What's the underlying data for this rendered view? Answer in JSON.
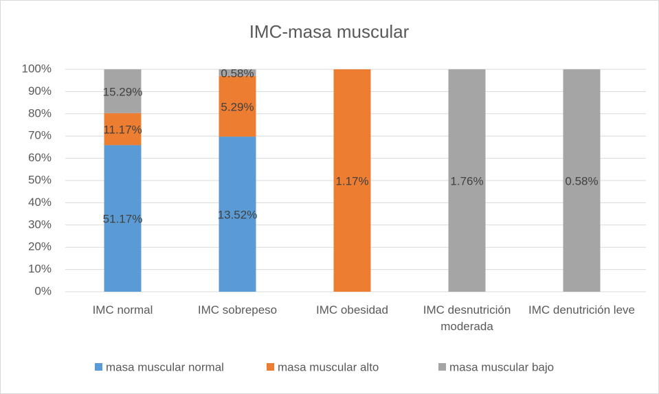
{
  "chart_data": {
    "type": "bar",
    "stacked": "percent",
    "title": "IMC-masa muscular",
    "categories": [
      "IMC normal",
      "IMC sobrepeso",
      "IMC obesidad",
      "IMC desnutrición moderada",
      "IMC denutrición leve"
    ],
    "series": [
      {
        "name": "masa muscular normal",
        "color": "#5b9bd5",
        "values": [
          51.17,
          13.52,
          null,
          null,
          null
        ],
        "value_labels": [
          "51.17%",
          "13.52%",
          null,
          null,
          null
        ]
      },
      {
        "name": "masa muscular alto",
        "color": "#ed7d31",
        "values": [
          11.17,
          5.29,
          1.17,
          null,
          null
        ],
        "value_labels": [
          "11.17%",
          "5.29%",
          "1.17%",
          null,
          null
        ]
      },
      {
        "name": "masa muscular bajo",
        "color": "#a5a5a5",
        "values": [
          15.29,
          0.58,
          null,
          1.76,
          0.58
        ],
        "value_labels": [
          "15.29%",
          "0.58%",
          null,
          "1.76%",
          "0.58%"
        ]
      }
    ],
    "ylim": [
      0,
      100
    ],
    "yticks": [
      {
        "value": 0,
        "label": "0%"
      },
      {
        "value": 10,
        "label": "10%"
      },
      {
        "value": 20,
        "label": "20%"
      },
      {
        "value": 30,
        "label": "30%"
      },
      {
        "value": 40,
        "label": "40%"
      },
      {
        "value": 50,
        "label": "50%"
      },
      {
        "value": 60,
        "label": "60%"
      },
      {
        "value": 70,
        "label": "70%"
      },
      {
        "value": 80,
        "label": "80%"
      },
      {
        "value": 90,
        "label": "90%"
      },
      {
        "value": 100,
        "label": "100%"
      }
    ],
    "grid": true,
    "legend": "bottom"
  }
}
